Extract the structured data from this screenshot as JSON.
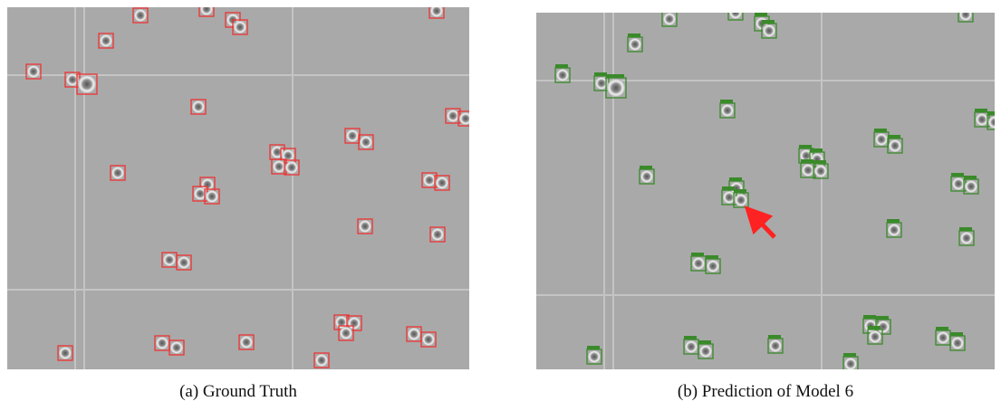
{
  "figure": {
    "panels": [
      {
        "caption": "(a) Ground Truth"
      },
      {
        "caption": "(b) Prediction of Model 6"
      }
    ]
  }
}
